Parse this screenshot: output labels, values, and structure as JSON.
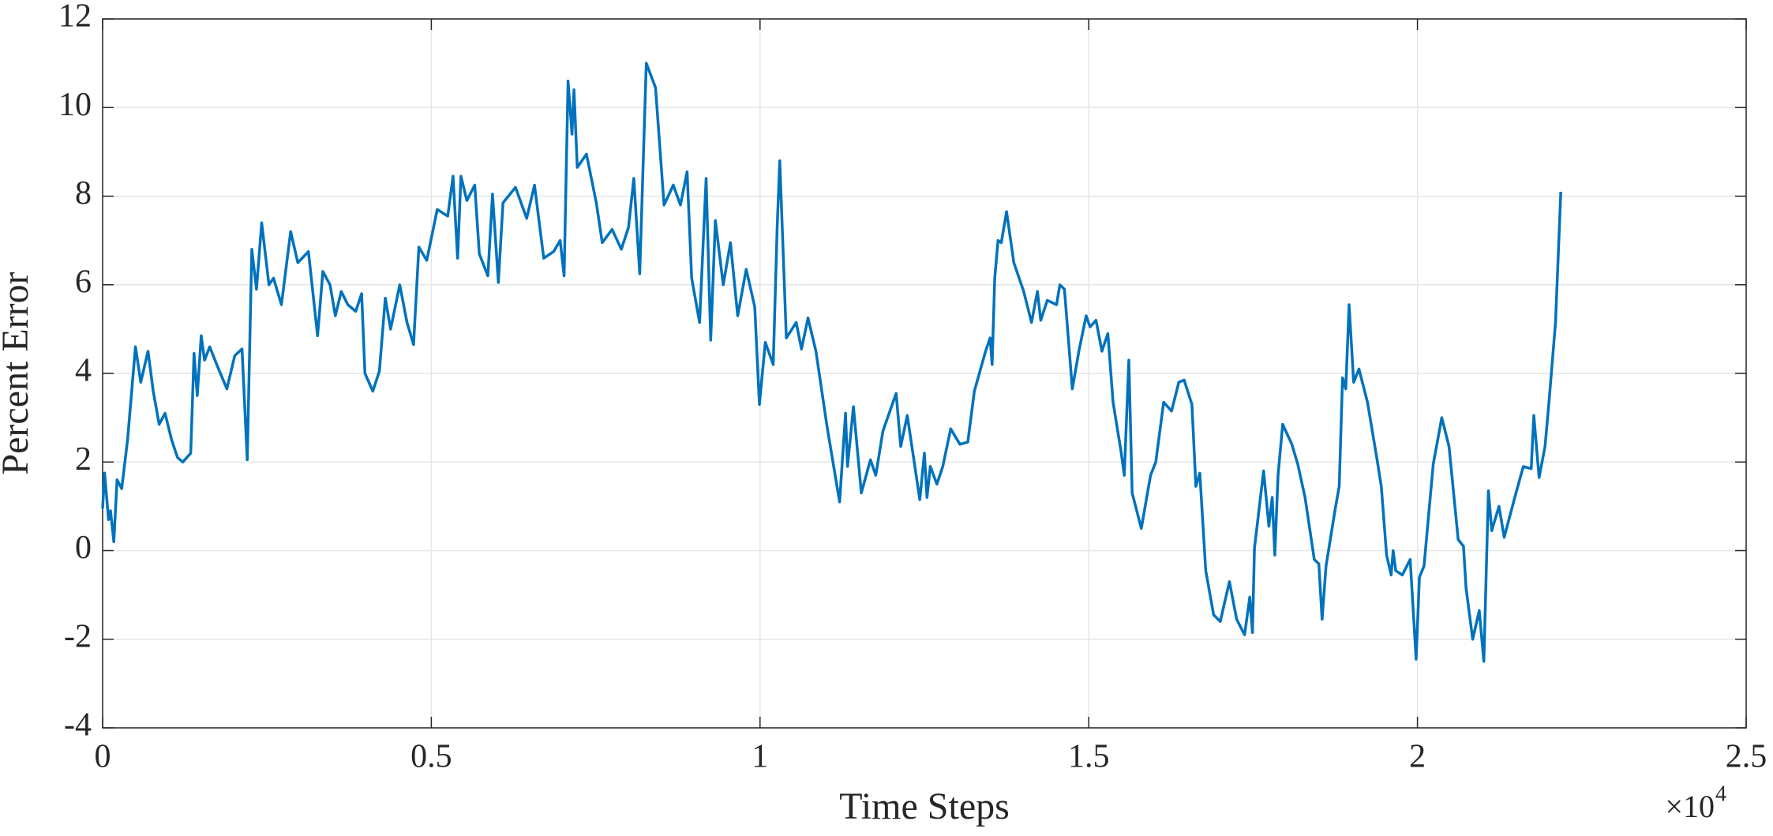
{
  "chart_data": {
    "type": "line",
    "xlabel": "Time Steps",
    "ylabel": "Percent Error",
    "x_multiplier": "×10",
    "x_multiplier_exponent": "4",
    "color": "#0072bd",
    "grid": true,
    "xlim": [
      0,
      2.5
    ],
    "xticks": [
      0,
      0.5,
      1,
      1.5,
      2,
      2.5
    ],
    "ylim": [
      -4,
      12
    ],
    "yticks": [
      -4,
      -2,
      0,
      2,
      4,
      6,
      8,
      10,
      12
    ],
    "x": [
      0,
      0.003,
      0.009,
      0.012,
      0.017,
      0.022,
      0.029,
      0.038,
      0.05,
      0.058,
      0.069,
      0.077,
      0.086,
      0.095,
      0.105,
      0.114,
      0.122,
      0.134,
      0.139,
      0.144,
      0.15,
      0.155,
      0.163,
      0.175,
      0.189,
      0.201,
      0.212,
      0.22,
      0.227,
      0.234,
      0.242,
      0.253,
      0.26,
      0.272,
      0.286,
      0.297,
      0.313,
      0.327,
      0.335,
      0.346,
      0.354,
      0.363,
      0.373,
      0.385,
      0.394,
      0.399,
      0.411,
      0.421,
      0.43,
      0.438,
      0.452,
      0.463,
      0.473,
      0.481,
      0.493,
      0.509,
      0.525,
      0.533,
      0.54,
      0.545,
      0.554,
      0.566,
      0.573,
      0.586,
      0.593,
      0.602,
      0.609,
      0.628,
      0.645,
      0.657,
      0.671,
      0.686,
      0.696,
      0.702,
      0.708,
      0.714,
      0.717,
      0.722,
      0.736,
      0.751,
      0.76,
      0.775,
      0.789,
      0.8,
      0.808,
      0.817,
      0.827,
      0.841,
      0.854,
      0.868,
      0.879,
      0.889,
      0.896,
      0.908,
      0.918,
      0.925,
      0.932,
      0.944,
      0.955,
      0.966,
      0.979,
      0.992,
      0.999,
      1.008,
      1.02,
      1.026,
      1.03,
      1.04,
      1.055,
      1.063,
      1.073,
      1.085,
      1.102,
      1.121,
      1.13,
      1.133,
      1.142,
      1.154,
      1.168,
      1.176,
      1.187,
      1.207,
      1.214,
      1.224,
      1.243,
      1.25,
      1.254,
      1.259,
      1.269,
      1.278,
      1.29,
      1.304,
      1.316,
      1.326,
      1.343,
      1.35,
      1.353,
      1.357,
      1.362,
      1.367,
      1.375,
      1.386,
      1.401,
      1.413,
      1.422,
      1.427,
      1.437,
      1.451,
      1.456,
      1.463,
      1.475,
      1.485,
      1.496,
      1.502,
      1.511,
      1.52,
      1.529,
      1.537,
      1.549,
      1.554,
      1.561,
      1.566,
      1.58,
      1.594,
      1.602,
      1.614,
      1.626,
      1.637,
      1.645,
      1.657,
      1.663,
      1.669,
      1.678,
      1.69,
      1.7,
      1.714,
      1.725,
      1.737,
      1.745,
      1.749,
      1.752,
      1.766,
      1.774,
      1.779,
      1.783,
      1.788,
      1.795,
      1.809,
      1.818,
      1.829,
      1.843,
      1.85,
      1.855,
      1.861,
      1.875,
      1.881,
      1.886,
      1.891,
      1.896,
      1.903,
      1.911,
      1.924,
      1.938,
      1.945,
      1.953,
      1.96,
      1.963,
      1.967,
      1.977,
      1.989,
      1.998,
      2.003,
      2.01,
      2.024,
      2.037,
      2.048,
      2.062,
      2.07,
      2.074,
      2.084,
      2.094,
      2.101,
      2.108,
      2.113,
      2.124,
      2.132,
      2.148,
      2.161,
      2.173,
      2.177,
      2.185,
      2.194,
      2.2,
      2.21,
      2.218
    ],
    "values": [
      0.95,
      1.75,
      0.7,
      0.9,
      0.2,
      1.6,
      1.4,
      2.5,
      4.6,
      3.8,
      4.5,
      3.6,
      2.85,
      3.1,
      2.5,
      2.1,
      2.0,
      2.2,
      4.45,
      3.5,
      4.85,
      4.3,
      4.6,
      4.15,
      3.65,
      4.4,
      4.55,
      2.05,
      6.8,
      5.9,
      7.4,
      6.0,
      6.15,
      5.55,
      7.2,
      6.5,
      6.75,
      4.85,
      6.3,
      6.0,
      5.3,
      5.85,
      5.55,
      5.4,
      5.8,
      4.0,
      3.6,
      4.05,
      5.7,
      5.0,
      6.0,
      5.15,
      4.65,
      6.85,
      6.55,
      7.7,
      7.55,
      8.45,
      6.6,
      8.45,
      7.9,
      8.25,
      6.7,
      6.2,
      8.05,
      6.05,
      7.85,
      8.2,
      7.5,
      8.25,
      6.6,
      6.75,
      7.0,
      6.2,
      10.6,
      9.4,
      10.4,
      8.65,
      8.95,
      7.85,
      6.95,
      7.25,
      6.8,
      7.3,
      8.4,
      6.25,
      11.0,
      10.45,
      7.8,
      8.25,
      7.8,
      8.55,
      6.15,
      5.15,
      8.4,
      4.75,
      7.45,
      6.0,
      6.95,
      5.3,
      6.35,
      5.5,
      3.3,
      4.7,
      4.2,
      7.3,
      8.8,
      4.8,
      5.15,
      4.55,
      5.25,
      4.5,
      2.8,
      1.1,
      3.1,
      1.9,
      3.25,
      1.3,
      2.05,
      1.7,
      2.7,
      3.55,
      2.35,
      3.05,
      1.15,
      2.2,
      1.2,
      1.9,
      1.5,
      1.9,
      2.75,
      2.4,
      2.45,
      3.6,
      4.5,
      4.8,
      4.2,
      6.15,
      7.0,
      6.95,
      7.65,
      6.5,
      5.85,
      5.15,
      5.85,
      5.2,
      5.65,
      5.55,
      6.0,
      5.9,
      3.65,
      4.5,
      5.3,
      5.05,
      5.2,
      4.5,
      4.9,
      3.35,
      2.25,
      1.7,
      4.3,
      1.3,
      0.5,
      1.7,
      2.0,
      3.35,
      3.15,
      3.8,
      3.85,
      3.3,
      1.45,
      1.75,
      -0.45,
      -1.45,
      -1.6,
      -0.7,
      -1.55,
      -1.9,
      -1.05,
      -1.85,
      0.05,
      1.8,
      0.55,
      1.2,
      -0.1,
      1.7,
      2.85,
      2.4,
      1.95,
      1.2,
      -0.2,
      -0.3,
      -1.55,
      -0.35,
      0.95,
      1.45,
      3.9,
      3.65,
      5.55,
      3.8,
      4.1,
      3.35,
      2.1,
      1.45,
      -0.1,
      -0.55,
      0.0,
      -0.45,
      -0.55,
      -0.2,
      -2.45,
      -0.6,
      -0.35,
      1.95,
      3.0,
      2.35,
      0.25,
      0.1,
      -0.85,
      -2.0,
      -1.35,
      -2.5,
      1.35,
      0.45,
      1.0,
      0.3,
      1.2,
      1.9,
      1.85,
      3.05,
      1.65,
      2.35,
      3.35,
      5.15,
      8.1
    ]
  }
}
